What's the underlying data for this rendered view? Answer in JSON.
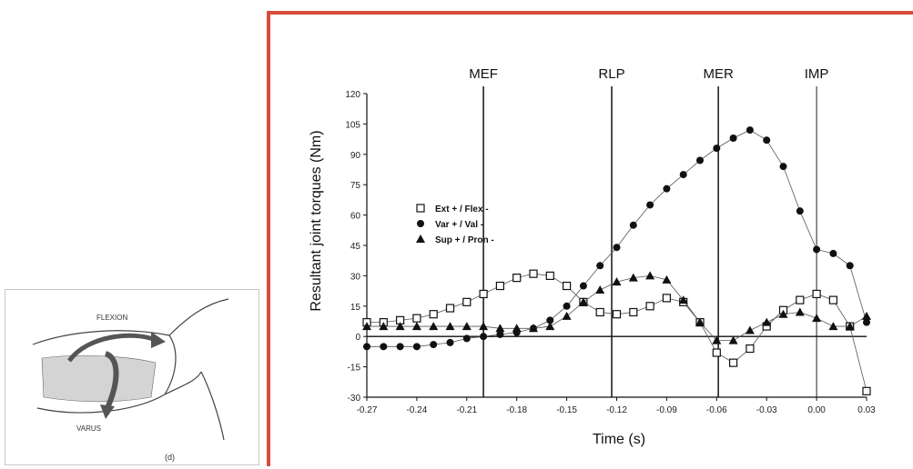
{
  "inset": {
    "flexion_label": "FLEXION",
    "varus_label": "VARUS",
    "panel_label": "(d)"
  },
  "chart_data": {
    "type": "scatter",
    "xlabel": "Time (s)",
    "ylabel": "Resultant joint torques (Nm)",
    "xlim": [
      -0.27,
      0.03
    ],
    "ylim": [
      -30,
      120
    ],
    "xticks": [
      -0.27,
      -0.24,
      -0.21,
      -0.18,
      -0.15,
      -0.12,
      -0.09,
      -0.06,
      -0.03,
      0.0,
      0.03
    ],
    "xtick_labels": [
      "-0.27",
      "-0.24",
      "-0.21",
      "-0.18",
      "-0.15",
      "-0.12",
      "-0.09",
      "-0.06",
      "-0.03",
      "0.00",
      "0.03"
    ],
    "yticks": [
      -30,
      -15,
      0,
      15,
      30,
      45,
      60,
      75,
      90,
      105,
      120
    ],
    "ytick_labels": [
      "-30",
      "-15",
      "0",
      "15",
      "30",
      "45",
      "60",
      "75",
      "90",
      "105",
      "120"
    ],
    "grid": false,
    "legend_position": "left",
    "event_lines": [
      {
        "label": "MEF",
        "x": -0.2
      },
      {
        "label": "RLP",
        "x": -0.123
      },
      {
        "label": "MER",
        "x": -0.059
      },
      {
        "label": "IMP",
        "x": 0.0
      }
    ],
    "series": [
      {
        "name": "Ext + / Flex -",
        "marker": "open-square",
        "x": [
          -0.27,
          -0.26,
          -0.25,
          -0.24,
          -0.23,
          -0.22,
          -0.21,
          -0.2,
          -0.19,
          -0.18,
          -0.17,
          -0.16,
          -0.15,
          -0.14,
          -0.13,
          -0.12,
          -0.11,
          -0.1,
          -0.09,
          -0.08,
          -0.07,
          -0.06,
          -0.05,
          -0.04,
          -0.03,
          -0.02,
          -0.01,
          0.0,
          0.01,
          0.02,
          0.03
        ],
        "y": [
          7,
          7,
          8,
          9,
          11,
          14,
          17,
          21,
          25,
          29,
          31,
          30,
          25,
          17,
          12,
          11,
          12,
          15,
          19,
          17,
          7,
          -8,
          -13,
          -6,
          5,
          13,
          18,
          21,
          18,
          5,
          -27
        ]
      },
      {
        "name": "Var + / Val -",
        "marker": "filled-circle",
        "x": [
          -0.27,
          -0.26,
          -0.25,
          -0.24,
          -0.23,
          -0.22,
          -0.21,
          -0.2,
          -0.19,
          -0.18,
          -0.17,
          -0.16,
          -0.15,
          -0.14,
          -0.13,
          -0.12,
          -0.11,
          -0.1,
          -0.09,
          -0.08,
          -0.07,
          -0.06,
          -0.05,
          -0.04,
          -0.03,
          -0.02,
          -0.01,
          0.0,
          0.01,
          0.02,
          0.03
        ],
        "y": [
          -5,
          -5,
          -5,
          -5,
          -4,
          -3,
          -1,
          0,
          1,
          2,
          4,
          8,
          15,
          25,
          35,
          44,
          55,
          65,
          73,
          80,
          87,
          93,
          98,
          102,
          97,
          84,
          62,
          43,
          41,
          35,
          7
        ]
      },
      {
        "name": "Sup + / Pron -",
        "marker": "filled-triangle",
        "x": [
          -0.27,
          -0.26,
          -0.25,
          -0.24,
          -0.23,
          -0.22,
          -0.21,
          -0.2,
          -0.19,
          -0.18,
          -0.17,
          -0.16,
          -0.15,
          -0.14,
          -0.13,
          -0.12,
          -0.11,
          -0.1,
          -0.09,
          -0.08,
          -0.07,
          -0.06,
          -0.05,
          -0.04,
          -0.03,
          -0.02,
          -0.01,
          0.0,
          0.01,
          0.02,
          0.03
        ],
        "y": [
          5,
          5,
          5,
          5,
          5,
          5,
          5,
          5,
          4,
          4,
          4,
          5,
          10,
          17,
          23,
          27,
          29,
          30,
          28,
          18,
          7,
          -2,
          -2,
          3,
          7,
          11,
          12,
          9,
          5,
          5,
          10
        ]
      }
    ]
  }
}
